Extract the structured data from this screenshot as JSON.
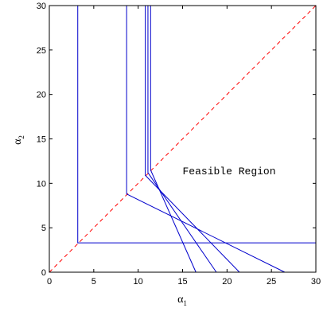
{
  "chart_data": {
    "type": "line",
    "title": "",
    "xlabel": {
      "base": "α",
      "sub": "1"
    },
    "ylabel": {
      "base": "α",
      "sub": "2"
    },
    "xlim": [
      0,
      30
    ],
    "ylim": [
      0,
      30
    ],
    "xticks": [
      "0",
      "5",
      "10",
      "15",
      "20",
      "25",
      "30"
    ],
    "yticks": [
      "0",
      "5",
      "10",
      "15",
      "20",
      "25",
      "30"
    ],
    "grid": false,
    "legend": "none",
    "line_color": "#0000cc",
    "diagonal_color": "#ff0000",
    "diagonal": {
      "from": [
        0,
        0
      ],
      "to": [
        30,
        30
      ],
      "style": "dashed"
    },
    "series": [
      {
        "points": [
          [
            3.2,
            30
          ],
          [
            3.2,
            3.3
          ],
          [
            30,
            3.3
          ]
        ]
      },
      {
        "points": [
          [
            8.7,
            30
          ],
          [
            8.7,
            8.8
          ],
          [
            26.5,
            0
          ]
        ]
      },
      {
        "points": [
          [
            10.8,
            30
          ],
          [
            10.8,
            10.9
          ],
          [
            21.4,
            0
          ]
        ]
      },
      {
        "points": [
          [
            11.1,
            30
          ],
          [
            11.1,
            11.2
          ],
          [
            18.8,
            0
          ]
        ]
      },
      {
        "points": [
          [
            11.4,
            30
          ],
          [
            11.4,
            11.5
          ],
          [
            16.5,
            0
          ]
        ]
      }
    ],
    "annotations": [
      {
        "text": "Feasible Region",
        "x": 15,
        "y": 11
      }
    ]
  }
}
